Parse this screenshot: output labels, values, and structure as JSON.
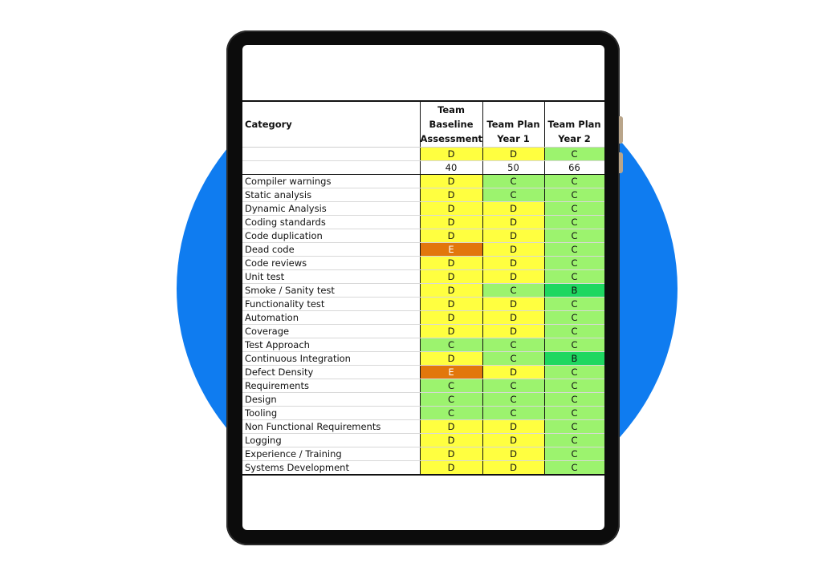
{
  "colors": {
    "grade_D": "#ffff40",
    "grade_C": "#9cf36e",
    "grade_B": "#1ed760",
    "grade_E": "#e2770c",
    "circle": "#0f7cf0",
    "tablet_frame": "#0c0c0c"
  },
  "table": {
    "category_header": "Category",
    "col1_header": [
      "Team",
      "Baseline",
      "Assessment"
    ],
    "col2_header": [
      "Team Plan",
      "Year 1"
    ],
    "col3_header": [
      "Team Plan",
      "Year 2"
    ],
    "overall": [
      "D",
      "D",
      "C"
    ],
    "scores": [
      "40",
      "50",
      "66"
    ],
    "rows": [
      {
        "category": "Compiler warnings",
        "grades": [
          "D",
          "C",
          "C"
        ]
      },
      {
        "category": "Static analysis",
        "grades": [
          "D",
          "C",
          "C"
        ]
      },
      {
        "category": "Dynamic Analysis",
        "grades": [
          "D",
          "D",
          "C"
        ]
      },
      {
        "category": "Coding standards",
        "grades": [
          "D",
          "D",
          "C"
        ]
      },
      {
        "category": "Code duplication",
        "grades": [
          "D",
          "D",
          "C"
        ]
      },
      {
        "category": "Dead code",
        "grades": [
          "E",
          "D",
          "C"
        ]
      },
      {
        "category": "Code reviews",
        "grades": [
          "D",
          "D",
          "C"
        ]
      },
      {
        "category": "Unit test",
        "grades": [
          "D",
          "D",
          "C"
        ]
      },
      {
        "category": "Smoke / Sanity test",
        "grades": [
          "D",
          "C",
          "B"
        ]
      },
      {
        "category": "Functionality test",
        "grades": [
          "D",
          "D",
          "C"
        ]
      },
      {
        "category": "Automation",
        "grades": [
          "D",
          "D",
          "C"
        ]
      },
      {
        "category": "Coverage",
        "grades": [
          "D",
          "D",
          "C"
        ]
      },
      {
        "category": "Test Approach",
        "grades": [
          "C",
          "C",
          "C"
        ]
      },
      {
        "category": "Continuous Integration",
        "grades": [
          "D",
          "C",
          "B"
        ]
      },
      {
        "category": "Defect Density",
        "grades": [
          "E",
          "D",
          "C"
        ]
      },
      {
        "category": "Requirements",
        "grades": [
          "C",
          "C",
          "C"
        ]
      },
      {
        "category": "Design",
        "grades": [
          "C",
          "C",
          "C"
        ]
      },
      {
        "category": "Tooling",
        "grades": [
          "C",
          "C",
          "C"
        ]
      },
      {
        "category": "Non Functional Requirements",
        "grades": [
          "D",
          "D",
          "C"
        ]
      },
      {
        "category": "Logging",
        "grades": [
          "D",
          "D",
          "C"
        ]
      },
      {
        "category": "Experience / Training",
        "grades": [
          "D",
          "D",
          "C"
        ]
      },
      {
        "category": "Systems Development",
        "grades": [
          "D",
          "D",
          "C"
        ]
      }
    ]
  }
}
